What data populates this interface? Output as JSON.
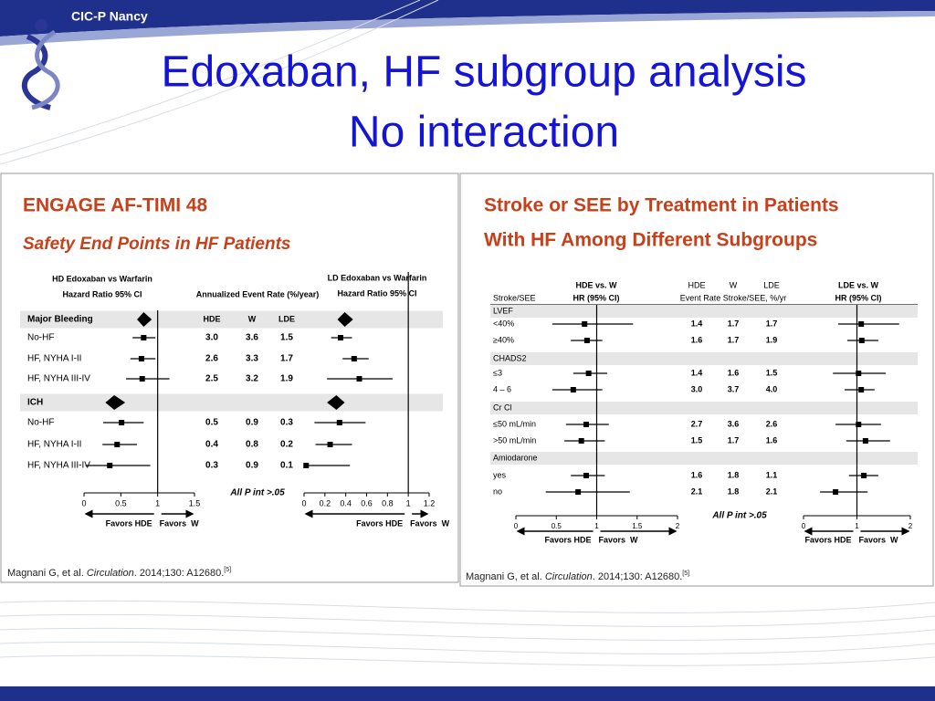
{
  "header": {
    "org": "CIC-P Nancy",
    "title": [
      "Edoxaban, HF subgroup analysis",
      "No interaction"
    ]
  },
  "panels": [
    {
      "title": [
        "ENGAGE AF-TIMI 48",
        "Safety End Points in HF Patients"
      ],
      "headers": {
        "hd": [
          "HD Edoxaban vs Warfarin",
          "Hazard Ratio 95% CI"
        ],
        "rate": "Annualized Event Rate (%/year)",
        "cols": [
          "HDE",
          "W",
          "LDE"
        ],
        "ld": [
          "LD Edoxaban vs Warfarin",
          "Hazard Ratio 95% CI"
        ]
      },
      "axes": [
        {
          "xlim": [
            0,
            1.5
          ],
          "xticks": [
            0,
            0.5,
            1,
            1.5
          ],
          "favors": [
            "Favors HDE",
            "Favors  W"
          ]
        },
        {
          "xlim": [
            0,
            1.2
          ],
          "xticks": [
            0,
            0.2,
            0.4,
            0.6,
            0.8,
            1,
            1.2
          ],
          "favors": [
            "Favors HDE",
            "Favors  W"
          ]
        }
      ],
      "groups": [
        {
          "label": "Major Bleeding",
          "summary": [
            [
              0.81,
              0.72,
              0.92
            ],
            [
              0.39,
              0.32,
              0.47
            ]
          ],
          "rows": [
            {
              "label": "No-HF",
              "rates": [
                "3.0",
                "3.6",
                "1.5"
              ],
              "hr": [
                [
                  0.81,
                  0.66,
                  0.97
                ],
                [
                  0.35,
                  0.26,
                  0.46
                ]
              ]
            },
            {
              "label": "HF, NYHA I-II",
              "rates": [
                "2.6",
                "3.3",
                "1.7"
              ],
              "hr": [
                [
                  0.78,
                  0.63,
                  0.97
                ],
                [
                  0.48,
                  0.37,
                  0.62
                ]
              ]
            },
            {
              "label": "HF, NYHA III-IV",
              "rates": [
                "2.5",
                "3.2",
                "1.9"
              ],
              "hr": [
                [
                  0.79,
                  0.57,
                  1.16
                ],
                [
                  0.53,
                  0.22,
                  0.85
                ]
              ]
            }
          ]
        },
        {
          "label": "ICH",
          "summary": [
            [
              0.41,
              0.29,
              0.56
            ],
            [
              0.31,
              0.22,
              0.39
            ]
          ],
          "rows": [
            {
              "label": "No-HF",
              "rates": [
                "0.5",
                "0.9",
                "0.3"
              ],
              "hr": [
                [
                  0.51,
                  0.26,
                  0.81
                ],
                [
                  0.34,
                  0.1,
                  0.59
                ]
              ]
            },
            {
              "label": "HF, NYHA I-II",
              "rates": [
                "0.4",
                "0.8",
                "0.2"
              ],
              "hr": [
                [
                  0.45,
                  0.25,
                  0.72
                ],
                [
                  0.25,
                  0.11,
                  0.46
                ]
              ]
            },
            {
              "label": "HF, NYHA III-IV",
              "rates": [
                "0.3",
                "0.9",
                "0.1"
              ],
              "hr": [
                [
                  0.35,
                  0.02,
                  0.9
                ],
                [
                  0.02,
                  0.01,
                  0.44
                ]
              ]
            }
          ]
        }
      ],
      "note": "All P int >.05",
      "citation": [
        "Magnani G, et al. ",
        "Circulation",
        ". 2014;130: A12680.",
        "[5]"
      ]
    },
    {
      "title": [
        "Stroke or SEE by Treatment in Patients",
        "With HF Among Different Subgroups"
      ],
      "headers": {
        "hd": [
          "HDE vs. W",
          "HR (95% CI)"
        ],
        "rate": "Event Rate Stroke/SEE, %/yr",
        "cols": [
          "HDE",
          "W",
          "LDE"
        ],
        "ld": [
          "LDE vs. W",
          "HR (95% CI)"
        ],
        "rowhead": "Stroke/SEE"
      },
      "axes": [
        {
          "xlim": [
            0,
            2
          ],
          "xticks": [
            0,
            0.5,
            1,
            1.5,
            2
          ],
          "favors": [
            "Favors HDE",
            "Favors  W"
          ]
        },
        {
          "xlim": [
            0,
            2
          ],
          "xticks": [
            0,
            1,
            2
          ],
          "favors": [
            "Favors HDE",
            "Favors  W"
          ]
        }
      ],
      "groups": [
        {
          "label": "LVEF",
          "rows": [
            {
              "label": "<40%",
              "rates": [
                "1.4",
                "1.7",
                "1.7"
              ],
              "hr": [
                [
                  0.85,
                  0.45,
                  1.45
                ],
                [
                  1.08,
                  0.65,
                  1.79
                ]
              ]
            },
            {
              "label": "≥40%",
              "rates": [
                "1.6",
                "1.7",
                "1.9"
              ],
              "hr": [
                [
                  0.88,
                  0.68,
                  1.07
                ],
                [
                  1.09,
                  0.82,
                  1.4
                ]
              ]
            }
          ]
        },
        {
          "label": "CHADS2",
          "rows": [
            {
              "label": "≤3",
              "rates": [
                "1.4",
                "1.6",
                "1.5"
              ],
              "hr": [
                [
                  0.9,
                  0.71,
                  1.13
                ],
                [
                  1.03,
                  0.55,
                  1.54
                ]
              ]
            },
            {
              "label": "4 – 6",
              "rates": [
                "3.0",
                "3.7",
                "4.0"
              ],
              "hr": [
                [
                  0.71,
                  0.45,
                  1.07
                ],
                [
                  1.08,
                  0.77,
                  1.33
                ]
              ]
            }
          ]
        },
        {
          "label": "Cr Cl",
          "rows": [
            {
              "label": "≤50 mL/min",
              "rates": [
                "2.7",
                "3.6",
                "2.6"
              ],
              "hr": [
                [
                  0.87,
                  0.62,
                  1.15
                ],
                [
                  1.03,
                  0.6,
                  1.45
                ]
              ]
            },
            {
              "label": ">50 mL/min",
              "rates": [
                "1.5",
                "1.7",
                "1.6"
              ],
              "hr": [
                [
                  0.81,
                  0.6,
                  1.1
                ],
                [
                  1.16,
                  0.8,
                  1.62
                ]
              ]
            }
          ]
        },
        {
          "label": "Amiodarone",
          "rows": [
            {
              "label": "yes",
              "rates": [
                "1.6",
                "1.8",
                "1.1"
              ],
              "hr": [
                [
                  0.87,
                  0.68,
                  1.1
                ],
                [
                  1.13,
                  0.85,
                  1.4
                ]
              ]
            },
            {
              "label": "no",
              "rates": [
                "2.1",
                "1.8",
                "2.1"
              ],
              "hr": [
                [
                  0.77,
                  0.37,
                  1.41
                ],
                [
                  0.6,
                  0.31,
                  1.2
                ]
              ]
            }
          ]
        }
      ],
      "note": "All P int >.05",
      "citation": [
        "Magnani G, et al. ",
        "Circulation",
        ". 2014;130: A12680.",
        "[5]"
      ]
    }
  ]
}
